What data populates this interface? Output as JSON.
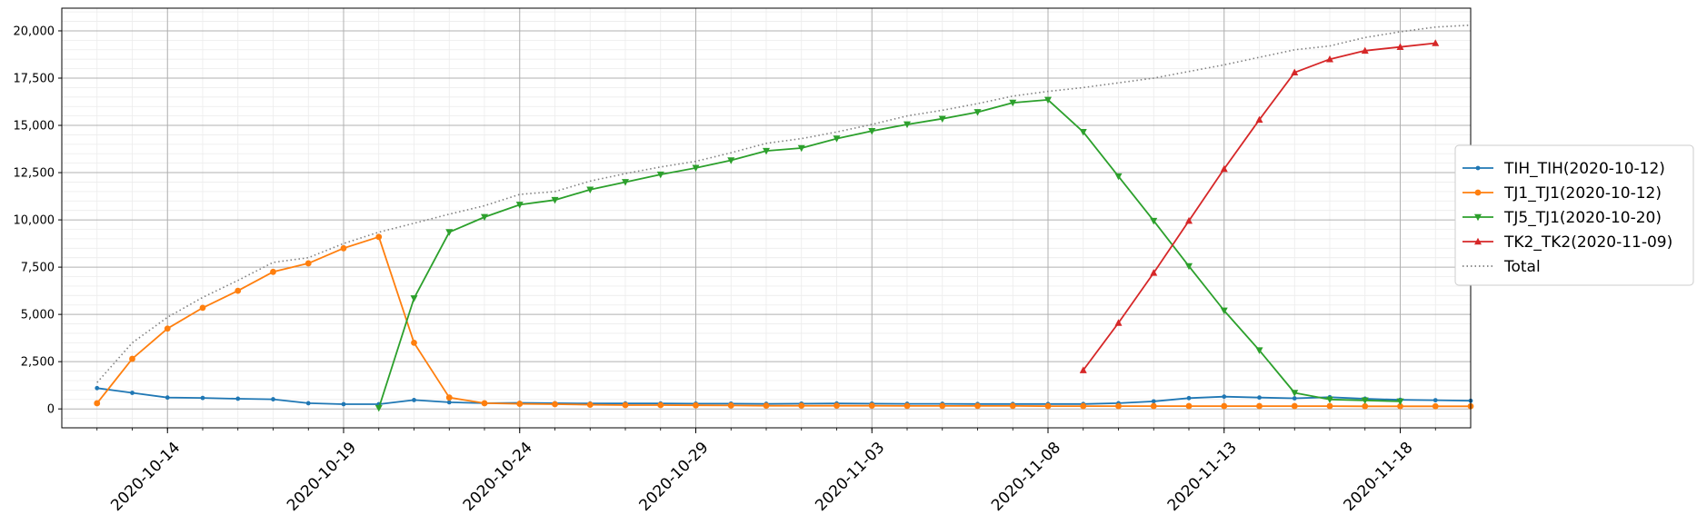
{
  "chart_data": {
    "type": "line",
    "title": "",
    "xlabel": "",
    "ylabel": "",
    "x_start": "2020-10-12",
    "x_end": "2020-11-19",
    "xlim": [
      "2020-10-11",
      "2020-11-20"
    ],
    "ylim": [
      -1000,
      21200
    ],
    "x_ticks": [
      "2020-10-14",
      "2020-10-19",
      "2020-10-24",
      "2020-10-29",
      "2020-11-03",
      "2020-11-08",
      "2020-11-13",
      "2020-11-18"
    ],
    "y_ticks": [
      0,
      2500,
      5000,
      7500,
      10000,
      12500,
      15000,
      17500,
      20000
    ],
    "y_tick_labels": [
      "0",
      "2,500",
      "5,000",
      "7,500",
      "10,000",
      "12,500",
      "15,000",
      "17,500",
      "20,000"
    ],
    "grid": "major and minor",
    "legend_position": "right-outside",
    "series": [
      {
        "name": "TIH_TIH(2020-10-12)",
        "color": "#1f77b4",
        "marker": "point",
        "start": "2020-10-12",
        "values": [
          1100,
          850,
          600,
          580,
          540,
          510,
          300,
          250,
          250,
          470,
          350,
          300,
          320,
          300,
          290,
          290,
          290,
          280,
          280,
          270,
          280,
          290,
          280,
          270,
          270,
          260,
          260,
          260,
          260,
          300,
          400,
          570,
          650,
          600,
          560,
          620,
          540,
          480,
          460,
          430
        ]
      },
      {
        "name": "TJ1_TJ1(2020-10-12)",
        "color": "#ff7f0e",
        "marker": "circle",
        "start": "2020-10-12",
        "values": [
          300,
          2650,
          4250,
          5350,
          6250,
          7250,
          7700,
          8500,
          9100,
          3500,
          600,
          300,
          270,
          250,
          220,
          200,
          200,
          190,
          180,
          170,
          170,
          170,
          170,
          160,
          160,
          160,
          160,
          150,
          150,
          150,
          150,
          150,
          150,
          150,
          150,
          150,
          140,
          140,
          140,
          140
        ]
      },
      {
        "name": "TJ5_TJ1(2020-10-20)",
        "color": "#2ca02c",
        "marker": "triangle-down",
        "start": "2020-10-20",
        "values": [
          50,
          5850,
          9350,
          10150,
          10800,
          11050,
          11600,
          12000,
          12400,
          12750,
          13150,
          13650,
          13800,
          14300,
          14700,
          15050,
          15350,
          15700,
          16200,
          16350,
          14650,
          12300,
          9950,
          7550,
          5200,
          3100,
          850,
          500,
          450,
          400
        ]
      },
      {
        "name": "TK2_TK2(2020-11-09)",
        "color": "#d62728",
        "marker": "triangle-up",
        "start": "2020-11-09",
        "values": [
          2050,
          4550,
          7200,
          9950,
          12700,
          15300,
          17800,
          18500,
          18950,
          19150,
          19350
        ]
      },
      {
        "name": "Total",
        "color": "#7f7f7f",
        "marker": "none",
        "linestyle": "dotted",
        "start": "2020-10-12",
        "values": [
          1400,
          3500,
          4850,
          5900,
          6800,
          7750,
          8000,
          8750,
          9350,
          9820,
          10300,
          10750,
          11350,
          11500,
          12050,
          12450,
          12800,
          13100,
          13550,
          14050,
          14300,
          14650,
          15050,
          15500,
          15800,
          16150,
          16550,
          16800,
          17000,
          17250,
          17500,
          17850,
          18200,
          18600,
          19000,
          19200,
          19650,
          19950,
          20200,
          20300
        ]
      }
    ]
  }
}
